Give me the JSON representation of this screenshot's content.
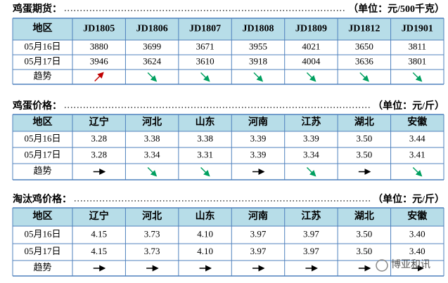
{
  "sections": [
    {
      "title": "鸡蛋期货：",
      "unit": "（单位：元/500千克）",
      "header": [
        "地区",
        "JD1805",
        "JD1806",
        "JD1807",
        "JD1808",
        "JD1809",
        "JD1812",
        "JD1901"
      ],
      "rows": [
        [
          "05月16日",
          "3880",
          "3699",
          "3671",
          "3955",
          "4021",
          "3650",
          "3811"
        ],
        [
          "05月17日",
          "3946",
          "3624",
          "3610",
          "3918",
          "4004",
          "3636",
          "3801"
        ]
      ],
      "trend_label": "趋势",
      "trend": [
        "up",
        "down",
        "down",
        "down",
        "down",
        "down",
        "down"
      ]
    },
    {
      "title": "鸡蛋价格：",
      "unit": "（单位：元/斤）",
      "header": [
        "地区",
        "辽宁",
        "河北",
        "山东",
        "河南",
        "江苏",
        "湖北",
        "安徽"
      ],
      "rows": [
        [
          "05月16日",
          "3.28",
          "3.38",
          "3.38",
          "3.39",
          "3.39",
          "3.50",
          "3.44"
        ],
        [
          "05月17日",
          "3.28",
          "3.34",
          "3.31",
          "3.39",
          "3.34",
          "3.50",
          "3.41"
        ]
      ],
      "trend_label": "趋势",
      "trend": [
        "flat",
        "down",
        "down",
        "flat",
        "down",
        "flat",
        "down"
      ]
    },
    {
      "title": "淘汰鸡价格：",
      "unit": "（单位：元/斤）",
      "header": [
        "地区",
        "辽宁",
        "河北",
        "山东",
        "河南",
        "江苏",
        "湖北",
        "安徽"
      ],
      "rows": [
        [
          "05月16日",
          "4.15",
          "3.73",
          "4.10",
          "3.97",
          "3.97",
          "3.50",
          "3.40"
        ],
        [
          "05月17日",
          "4.15",
          "3.73",
          "4.10",
          "3.97",
          "3.97",
          "3.50",
          "3.40"
        ]
      ],
      "trend_label": "趋势",
      "trend": [
        "flat",
        "flat",
        "flat",
        "flat",
        "flat",
        "flat",
        "flat"
      ]
    }
  ],
  "watermark": "博亚和讯"
}
